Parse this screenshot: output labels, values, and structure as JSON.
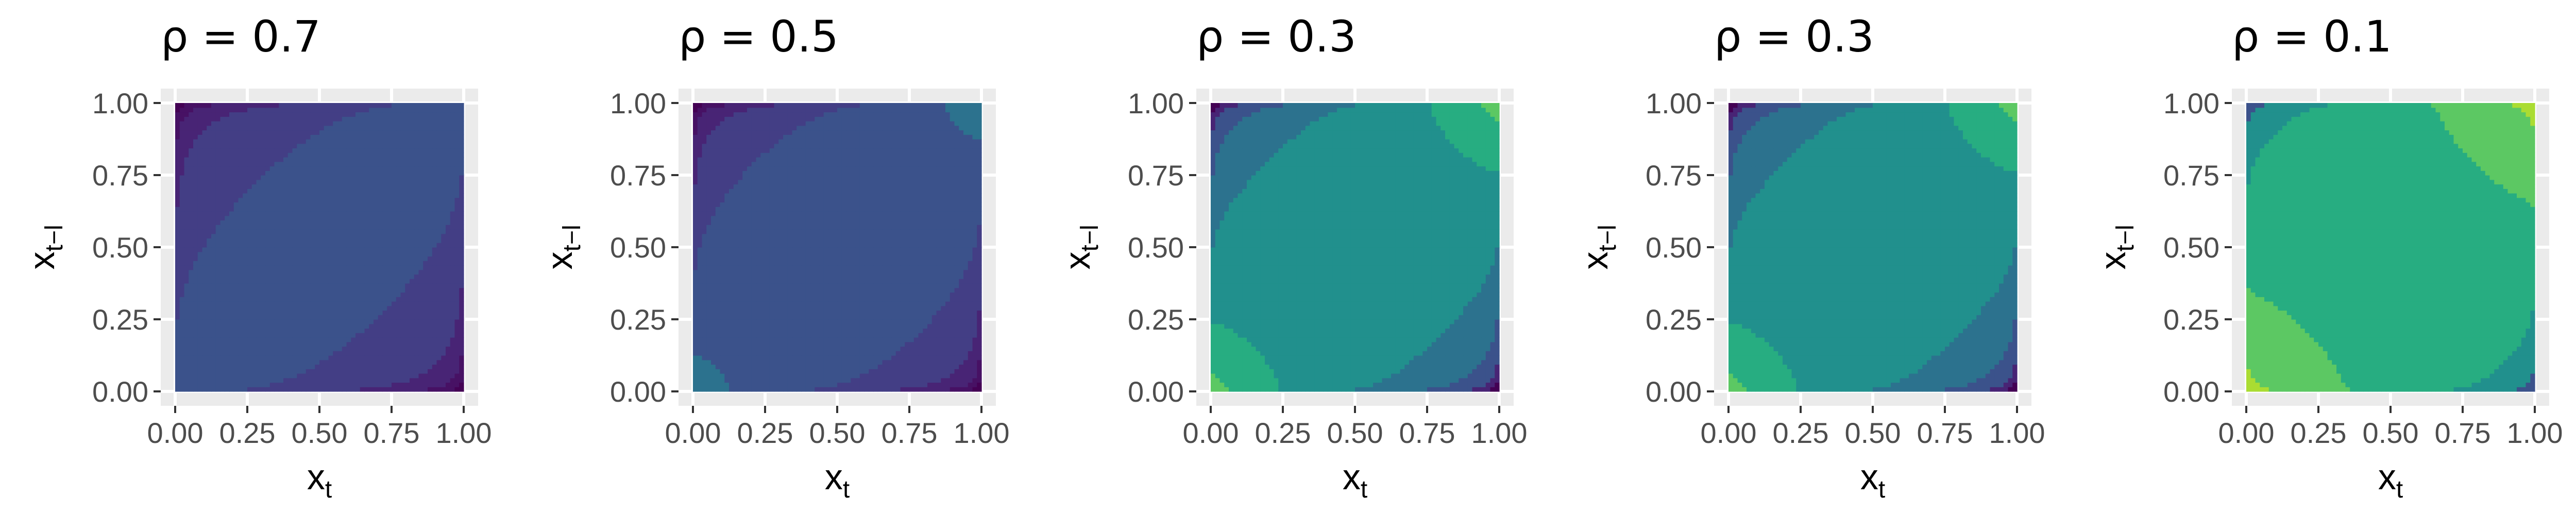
{
  "chart_data": [
    {
      "type": "heatmap",
      "title": "ρ = 0.7",
      "rho": 0.7,
      "xlabel": {
        "main": "x",
        "sub": "t"
      },
      "ylabel": {
        "main": "x",
        "sub": "t−l"
      },
      "xlim": [
        0,
        1
      ],
      "ylim": [
        0,
        1
      ],
      "ticks": [
        "0.00",
        "0.25",
        "0.50",
        "0.75",
        "1.00"
      ],
      "tick_values": [
        0,
        0.25,
        0.5,
        0.75,
        1
      ],
      "grid": true,
      "colormap": "viridis",
      "color_levels": [
        "#440154",
        "#471164",
        "#482475",
        "#433e85",
        "#3b528b"
      ],
      "corner_level_diag": 5,
      "corner_level_off": 0
    },
    {
      "type": "heatmap",
      "title": "ρ = 0.5",
      "rho": 0.5,
      "xlabel": {
        "main": "x",
        "sub": "t"
      },
      "ylabel": {
        "main": "x",
        "sub": "t−l"
      },
      "xlim": [
        0,
        1
      ],
      "ylim": [
        0,
        1
      ],
      "ticks": [
        "0.00",
        "0.25",
        "0.50",
        "0.75",
        "1.00"
      ],
      "tick_values": [
        0,
        0.25,
        0.5,
        0.75,
        1
      ],
      "grid": true,
      "colormap": "viridis",
      "color_levels": [
        "#440154",
        "#471164",
        "#482475",
        "#433e85",
        "#3b528b",
        "#2c728e"
      ],
      "corner_level_diag": 6,
      "corner_level_off": 0
    },
    {
      "type": "heatmap",
      "title": "ρ = 0.3",
      "rho": 0.3,
      "xlabel": {
        "main": "x",
        "sub": "t"
      },
      "ylabel": {
        "main": "x",
        "sub": "t−l"
      },
      "xlim": [
        0,
        1
      ],
      "ylim": [
        0,
        1
      ],
      "ticks": [
        "0.00",
        "0.25",
        "0.50",
        "0.75",
        "1.00"
      ],
      "tick_values": [
        0,
        0.25,
        0.5,
        0.75,
        1
      ],
      "grid": true,
      "colormap": "viridis",
      "color_levels": [
        "#440154",
        "#482475",
        "#3b528b",
        "#2c728e",
        "#21908d",
        "#27ad81",
        "#5cc863"
      ],
      "corner_level_diag": 7,
      "corner_level_off": 0
    },
    {
      "type": "heatmap",
      "title": "ρ = 0.3",
      "rho": 0.3,
      "xlabel": {
        "main": "x",
        "sub": "t"
      },
      "ylabel": {
        "main": "x",
        "sub": "t−l"
      },
      "xlim": [
        0,
        1
      ],
      "ylim": [
        0,
        1
      ],
      "ticks": [
        "0.00",
        "0.25",
        "0.50",
        "0.75",
        "1.00"
      ],
      "tick_values": [
        0,
        0.25,
        0.5,
        0.75,
        1
      ],
      "grid": true,
      "colormap": "viridis",
      "color_levels": [
        "#440154",
        "#482475",
        "#3b528b",
        "#2c728e",
        "#21908d",
        "#27ad81",
        "#5cc863"
      ],
      "corner_level_diag": 7,
      "corner_level_off": 0
    },
    {
      "type": "heatmap",
      "title": "ρ = 0.1",
      "rho": 0.1,
      "xlabel": {
        "main": "x",
        "sub": "t"
      },
      "ylabel": {
        "main": "x",
        "sub": "t−l"
      },
      "xlim": [
        0,
        1
      ],
      "ylim": [
        0,
        1
      ],
      "ticks": [
        "0.00",
        "0.25",
        "0.50",
        "0.75",
        "1.00"
      ],
      "tick_values": [
        0,
        0.25,
        0.5,
        0.75,
        1
      ],
      "grid": true,
      "colormap": "viridis",
      "color_levels": [
        "#3b528b",
        "#21908d",
        "#27ad81",
        "#5cc863",
        "#aadc32"
      ],
      "corner_level_diag": 5,
      "corner_level_off": 1
    }
  ]
}
